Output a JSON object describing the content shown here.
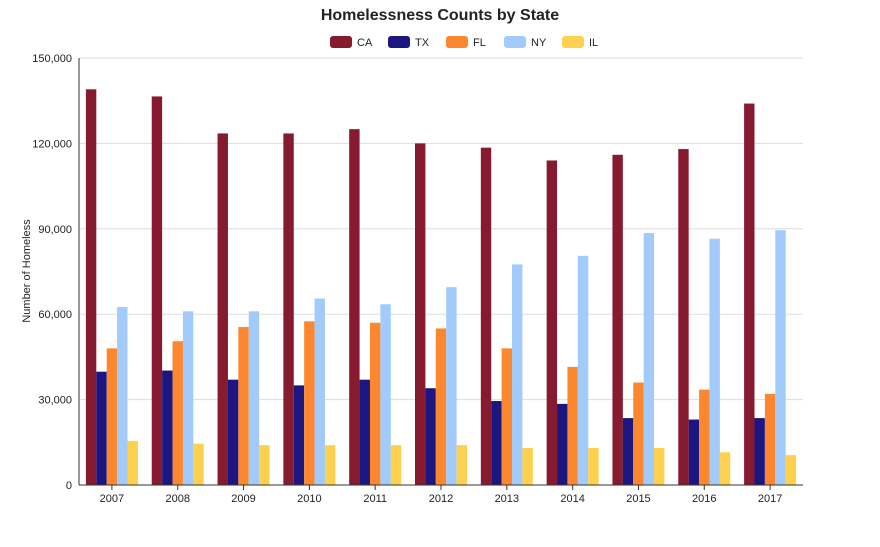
{
  "chart_data": {
    "type": "bar",
    "title": "Homelessness Counts by State",
    "xlabel": "",
    "ylabel": "Number of Homeless",
    "ylim": [
      0,
      150000
    ],
    "yticks": [
      "0",
      "30,000",
      "60,000",
      "90,000",
      "120,000",
      "150,000"
    ],
    "ytick_values": [
      0,
      30000,
      60000,
      90000,
      120000,
      150000
    ],
    "categories": [
      "2007",
      "2008",
      "2009",
      "2010",
      "2011",
      "2012",
      "2013",
      "2014",
      "2015",
      "2016",
      "2017"
    ],
    "legend_position": "top-center",
    "grid": true,
    "series": [
      {
        "name": "CA",
        "color": "#861A2F",
        "values": [
          139000,
          136500,
          123500,
          123500,
          125000,
          120000,
          118500,
          114000,
          116000,
          118000,
          134000
        ]
      },
      {
        "name": "TX",
        "color": "#1C1681",
        "values": [
          39800,
          40200,
          37000,
          35000,
          37000,
          34000,
          29500,
          28500,
          23500,
          23000,
          23500
        ]
      },
      {
        "name": "FL",
        "color": "#FC872F",
        "values": [
          48000,
          50500,
          55500,
          57500,
          57000,
          55000,
          48000,
          41500,
          36000,
          33500,
          32000
        ]
      },
      {
        "name": "NY",
        "color": "#A2CBFB",
        "values": [
          62500,
          61000,
          61000,
          65500,
          63500,
          69500,
          77500,
          80500,
          88500,
          86500,
          89500
        ]
      },
      {
        "name": "IL",
        "color": "#FDD14F",
        "values": [
          15500,
          14500,
          14000,
          14000,
          14000,
          14000,
          13000,
          13000,
          13000,
          11500,
          10500
        ]
      }
    ]
  }
}
